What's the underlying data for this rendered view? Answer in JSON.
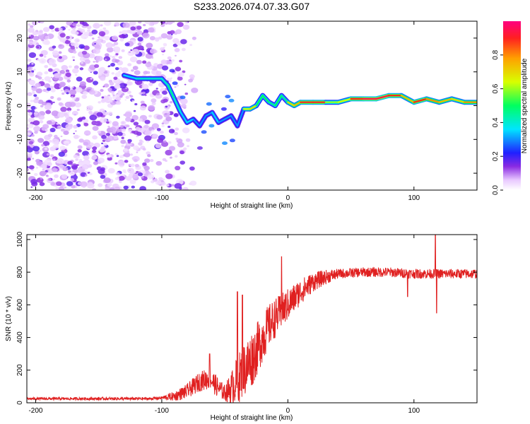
{
  "title": "S233.2026.074.07.33.G07",
  "colors": {
    "snr_line": "#e02020",
    "frame": "#000000",
    "background": "#ffffff",
    "ridge_core": "#ff2020",
    "noise_dots": "#7a2ae8"
  },
  "chart_data": [
    {
      "type": "heatmap",
      "name": "spectrogram",
      "xlabel": "Height of straight line (km)",
      "ylabel": "Frequency (Hz)",
      "xlim": [
        -207,
        150
      ],
      "ylim": [
        -25,
        25
      ],
      "xticks": [
        "-200",
        "-100",
        "0",
        "100"
      ],
      "xtick_values": [
        -200,
        -100,
        0,
        100
      ],
      "yticks": [
        "-20",
        "-10",
        "0",
        "10",
        "20"
      ],
      "ytick_values": [
        -20,
        -10,
        0,
        10,
        20
      ],
      "ridge": {
        "x": [
          -130,
          -120,
          -110,
          -100,
          -95,
          -90,
          -85,
          -80,
          -75,
          -70,
          -65,
          -60,
          -55,
          -50,
          -45,
          -40,
          -35,
          -30,
          -25,
          -20,
          -15,
          -10,
          -5,
          0,
          5,
          10,
          20,
          30,
          40,
          50,
          60,
          70,
          80,
          90,
          100,
          110,
          120,
          130,
          140,
          150
        ],
        "y": [
          9,
          8,
          8,
          8,
          6,
          2,
          -2,
          -5,
          -4,
          -6,
          -3,
          -2,
          -5,
          -4,
          -3,
          -6,
          -1,
          -1,
          0,
          3,
          1,
          0,
          3,
          1,
          0,
          1,
          1,
          1,
          1,
          2,
          2,
          2,
          3,
          3,
          1,
          2,
          1,
          2,
          1,
          1
        ],
        "amplitude": [
          0.35,
          0.4,
          0.4,
          0.4,
          0.45,
          0.4,
          0.35,
          0.35,
          0.3,
          0.3,
          0.3,
          0.35,
          0.3,
          0.3,
          0.3,
          0.3,
          0.65,
          0.7,
          0.5,
          0.5,
          0.45,
          0.5,
          0.45,
          0.7,
          0.75,
          0.9,
          0.9,
          0.6,
          0.65,
          0.9,
          0.95,
          0.95,
          0.9,
          0.75,
          0.9,
          0.8,
          0.75,
          0.7,
          0.8,
          0.8
        ]
      },
      "noise_region_x": [
        -207,
        -110
      ]
    },
    {
      "type": "colorbar",
      "name": "amplitude-colorbar",
      "label": "Normalized spectral amplitude",
      "range": [
        0,
        1
      ],
      "ticks": [
        "0.0",
        "0.2",
        "0.4",
        "0.6",
        "0.8"
      ],
      "tick_values": [
        0,
        0.2,
        0.4,
        0.6,
        0.8
      ]
    },
    {
      "type": "line",
      "name": "snr",
      "xlabel": "Height of straight line (km)",
      "ylabel": "SNR (10 * v/v)",
      "xlim": [
        -207,
        150
      ],
      "ylim": [
        0,
        1030
      ],
      "xticks": [
        "-200",
        "-100",
        "0",
        "100"
      ],
      "xtick_values": [
        -200,
        -100,
        0,
        100
      ],
      "yticks": [
        "0",
        "200",
        "400",
        "600",
        "800",
        "1000"
      ],
      "ytick_values": [
        0,
        200,
        400,
        600,
        800,
        1000
      ],
      "trend": {
        "x": [
          -207,
          -150,
          -110,
          -100,
          -90,
          -80,
          -70,
          -62,
          -55,
          -50,
          -45,
          -40,
          -35,
          -30,
          -25,
          -20,
          -15,
          -10,
          -5,
          0,
          10,
          20,
          30,
          40,
          50,
          60,
          70,
          80,
          100,
          120,
          150
        ],
        "y": [
          25,
          25,
          25,
          30,
          40,
          70,
          130,
          150,
          90,
          60,
          90,
          140,
          200,
          250,
          320,
          400,
          470,
          520,
          560,
          600,
          680,
          740,
          770,
          790,
          795,
          800,
          800,
          800,
          790,
          790,
          790
        ]
      },
      "noise_amplitude": {
        "x": [
          -207,
          -100,
          -90,
          -70,
          -60,
          -50,
          -40,
          -30,
          -20,
          -10,
          0,
          20,
          40,
          150
        ],
        "y": [
          8,
          10,
          30,
          60,
          70,
          50,
          150,
          180,
          150,
          120,
          100,
          60,
          30,
          30
        ]
      },
      "spikes": [
        {
          "x": -62,
          "y": 300
        },
        {
          "x": -40,
          "y": 680
        },
        {
          "x": -36,
          "y": 660
        },
        {
          "x": -5,
          "y": 895
        },
        {
          "x": 95,
          "y": 650
        },
        {
          "x": 117,
          "y": 1030
        },
        {
          "x": 118,
          "y": 550
        }
      ]
    }
  ]
}
